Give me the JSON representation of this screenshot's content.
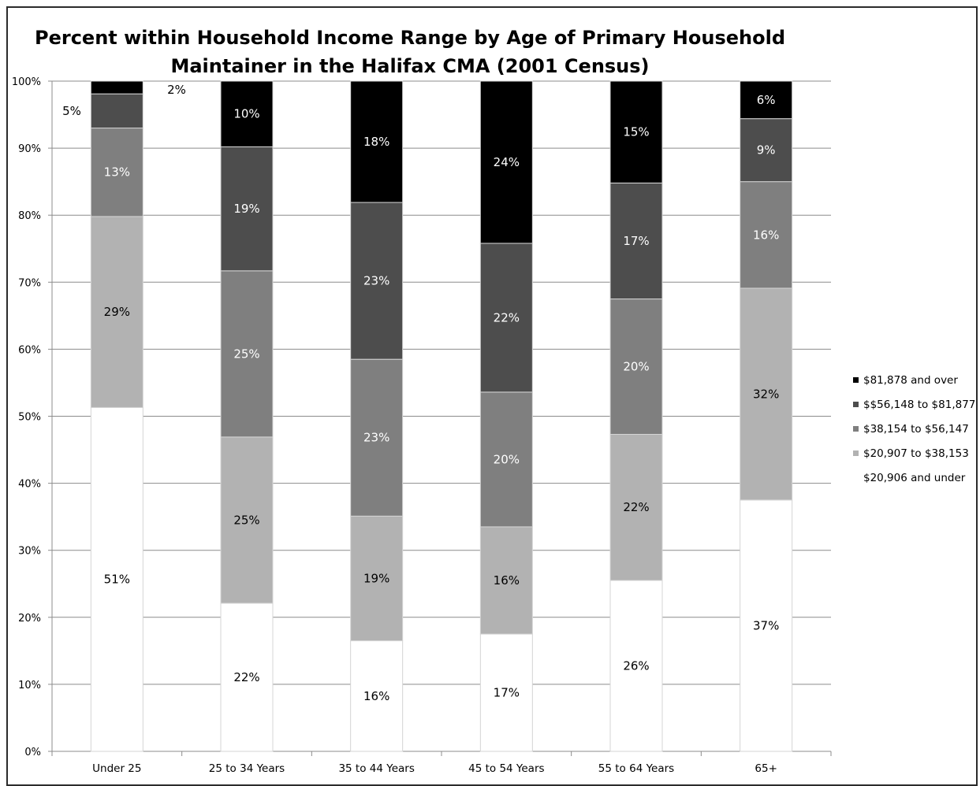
{
  "chart_data": {
    "type": "bar",
    "stacked": true,
    "title": [
      "Percent within Household Income Range by Age of Primary Household",
      "Maintainer in the Halifax CMA (2001 Census)"
    ],
    "xlabel": "",
    "ylabel": "",
    "ylim": [
      0,
      100
    ],
    "y_ticks": [
      "0%",
      "10%",
      "20%",
      "30%",
      "40%",
      "50%",
      "60%",
      "70%",
      "80%",
      "90%",
      "100%"
    ],
    "grid": true,
    "legend_position": "right",
    "categories": [
      "Under 25",
      "25 to 34 Years",
      "35 to 44 Years",
      "45 to 54 Years",
      "55 to 64 Years",
      "65+"
    ],
    "series": [
      {
        "name": "$20,906 and under",
        "color": "#ffffff",
        "label_color": "#000000",
        "values": [
          51.3,
          22.1,
          16.5,
          17.5,
          25.5,
          37.5
        ],
        "labels": [
          "51%",
          "22%",
          "16%",
          "17%",
          "26%",
          "37%"
        ]
      },
      {
        "name": "$20,907 to $38,153",
        "color": "#b2b2b2",
        "label_color": "#000000",
        "values": [
          28.5,
          24.8,
          18.6,
          16.0,
          21.8,
          31.6
        ],
        "labels": [
          "29%",
          "25%",
          "19%",
          "16%",
          "22%",
          "32%"
        ]
      },
      {
        "name": "$38,154 to $56,147",
        "color": "#7f7f7f",
        "label_color": "#ffffff",
        "values": [
          13.2,
          24.8,
          23.4,
          20.1,
          20.2,
          15.9
        ],
        "labels": [
          "13%",
          "25%",
          "23%",
          "20%",
          "20%",
          "16%"
        ]
      },
      {
        "name": "$$56,148 to $81,877",
        "color": "#4d4d4d",
        "label_color": "#ffffff",
        "values": [
          5.1,
          18.5,
          23.4,
          22.2,
          17.3,
          9.4
        ],
        "labels": [
          "5%",
          "19%",
          "23%",
          "22%",
          "17%",
          "9%"
        ]
      },
      {
        "name": "$81,878 and over",
        "color": "#000000",
        "label_color": "#ffffff",
        "values": [
          1.9,
          9.8,
          18.1,
          24.2,
          15.2,
          5.6
        ],
        "labels": [
          "2%",
          "10%",
          "18%",
          "24%",
          "15%",
          "6%"
        ]
      }
    ]
  }
}
